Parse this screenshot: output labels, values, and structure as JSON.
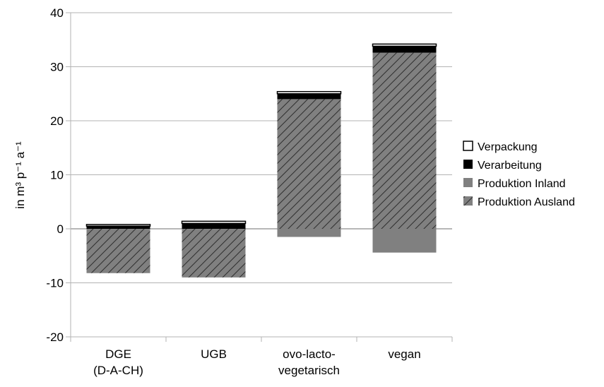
{
  "chart_data": {
    "type": "bar",
    "stacked": true,
    "ylabel": "in m³ p⁻¹ a⁻¹",
    "ylim": [
      -20,
      40
    ],
    "yticks": [
      "-20",
      "-10",
      "0",
      "10",
      "20",
      "30",
      "40"
    ],
    "grid": true,
    "legend_position": "right",
    "categories": [
      [
        "DGE",
        "(D-A-CH)"
      ],
      [
        "UGB"
      ],
      [
        "ovo-lacto-",
        "vegetarisch"
      ],
      [
        "vegan"
      ]
    ],
    "series": [
      {
        "name": "Produktion Ausland",
        "pattern": "hatch",
        "color": "#808080",
        "positive": [
          0,
          0,
          24.0,
          32.6
        ],
        "negative": [
          -8.2,
          -9.0,
          0,
          0
        ]
      },
      {
        "name": "Produktion Inland",
        "pattern": "solid",
        "color": "#808080",
        "positive": [
          0,
          0,
          0,
          0
        ],
        "negative": [
          0,
          0,
          -1.5,
          -4.4
        ]
      },
      {
        "name": "Verarbeitung",
        "pattern": "solid",
        "color": "#000000",
        "positive": [
          0.5,
          1.0,
          1.0,
          1.2
        ],
        "negative": [
          0,
          0,
          0,
          0
        ]
      },
      {
        "name": "Verpackung",
        "pattern": "outline",
        "color": "#ffffff",
        "positive": [
          0.3,
          0.4,
          0.4,
          0.4
        ],
        "negative": [
          0,
          0,
          0,
          0
        ]
      }
    ],
    "legend_order": [
      "Verpackung",
      "Verarbeitung",
      "Produktion Inland",
      "Produktion Ausland"
    ]
  }
}
